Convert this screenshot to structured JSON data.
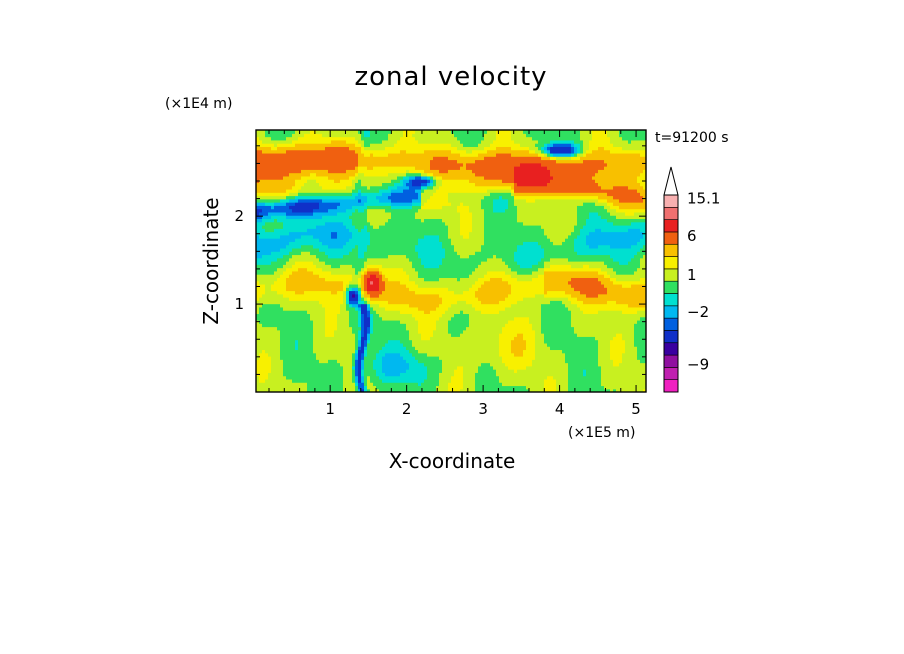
{
  "chart_data": {
    "type": "heatmap",
    "title": "zonal velocity",
    "xlabel": "X-coordinate",
    "ylabel": "Z-coordinate",
    "x_unit": "(×1E5 m)",
    "y_unit": "(×1E4 m)",
    "time_label": "t=91200 s",
    "xlim": [
      0.03,
      5.13
    ],
    "ylim": [
      0.0,
      2.98
    ],
    "x_ticks": [
      "1",
      "2",
      "3",
      "4",
      "5"
    ],
    "y_ticks": [
      "1",
      "2"
    ],
    "colorbar": {
      "tick_labels": [
        "15.1",
        "6",
        "1",
        "−2",
        "−9"
      ],
      "levels": [
        {
          "lo": -13.5,
          "hi": -11.5,
          "color": "#f020c0"
        },
        {
          "lo": -11.5,
          "hi": -9.5,
          "color": "#c020b0"
        },
        {
          "lo": -9.5,
          "hi": -7.5,
          "color": "#9010a0"
        },
        {
          "lo": -7.5,
          "hi": -5.5,
          "color": "#3a00a0"
        },
        {
          "lo": -5.5,
          "hi": -3.5,
          "color": "#1030c8"
        },
        {
          "lo": -3.5,
          "hi": -2.5,
          "color": "#0060e0"
        },
        {
          "lo": -2.5,
          "hi": -1.5,
          "color": "#00b8f0"
        },
        {
          "lo": -1.5,
          "hi": -0.5,
          "color": "#00e0d0"
        },
        {
          "lo": -0.5,
          "hi": 0.5,
          "color": "#30e060"
        },
        {
          "lo": 0.5,
          "hi": 1.5,
          "color": "#c8f020"
        },
        {
          "lo": 1.5,
          "hi": 2.5,
          "color": "#f8f000"
        },
        {
          "lo": 2.5,
          "hi": 4.0,
          "color": "#f8c000"
        },
        {
          "lo": 4.0,
          "hi": 7.0,
          "color": "#f06010"
        },
        {
          "lo": 7.0,
          "hi": 10.0,
          "color": "#e82020"
        },
        {
          "lo": 10.0,
          "hi": 13.0,
          "color": "#f07070"
        },
        {
          "lo": 13.0,
          "hi": 16.0,
          "color": "#f8b0b0"
        }
      ],
      "extend_top": true
    },
    "field_description_values": {
      "bands": [
        {
          "z": 2.55,
          "value": 5.5,
          "x_center": 0.8
        },
        {
          "z": 2.1,
          "value": 1.5
        },
        {
          "z": 1.55,
          "value": -1.5
        },
        {
          "z": 1.0,
          "value": 2.0
        },
        {
          "z": 0.45,
          "value": 0.0
        }
      ]
    }
  }
}
